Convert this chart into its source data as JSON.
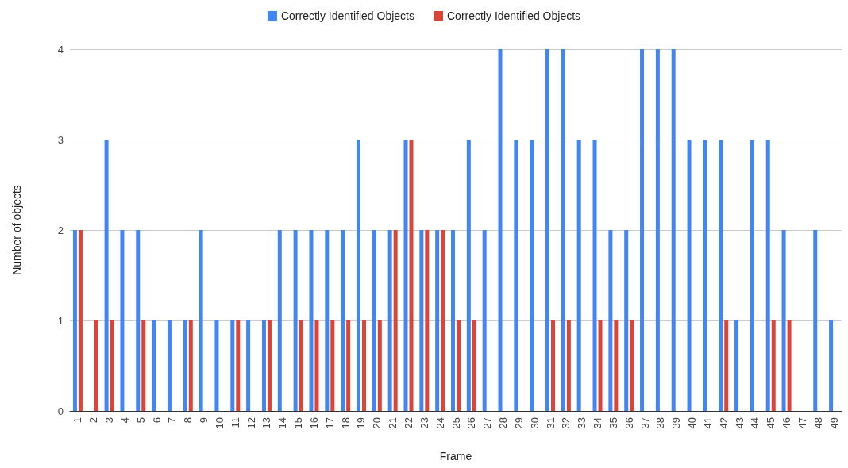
{
  "chart_data": {
    "type": "bar",
    "xlabel": "Frame",
    "ylabel": "Number of objects",
    "categories": [
      "1",
      "2",
      "3",
      "4",
      "5",
      "6",
      "7",
      "8",
      "9",
      "10",
      "11",
      "12",
      "13",
      "14",
      "15",
      "16",
      "17",
      "18",
      "19",
      "20",
      "21",
      "22",
      "23",
      "24",
      "25",
      "26",
      "27",
      "28",
      "29",
      "30",
      "31",
      "32",
      "33",
      "34",
      "35",
      "36",
      "37",
      "38",
      "39",
      "40",
      "41",
      "42",
      "43",
      "44",
      "45",
      "46",
      "47",
      "48",
      "49"
    ],
    "series": [
      {
        "name": "Correctly Identified Objects",
        "color": "#4285f4",
        "values": [
          2,
          0,
          3,
          2,
          2,
          1,
          1,
          1,
          2,
          1,
          1,
          1,
          1,
          2,
          2,
          2,
          2,
          2,
          3,
          2,
          2,
          3,
          2,
          2,
          2,
          3,
          2,
          4,
          3,
          3,
          4,
          4,
          3,
          3,
          2,
          2,
          4,
          4,
          4,
          3,
          3,
          3,
          1,
          3,
          3,
          2,
          0,
          2,
          1
        ]
      },
      {
        "name": "Correctly Identified Objects",
        "color": "#db4437",
        "values": [
          2,
          1,
          1,
          0,
          1,
          0,
          0,
          1,
          0,
          0,
          1,
          0,
          1,
          0,
          1,
          1,
          1,
          1,
          1,
          1,
          2,
          3,
          2,
          2,
          1,
          1,
          0,
          0,
          0,
          0,
          1,
          1,
          0,
          1,
          1,
          1,
          0,
          0,
          0,
          0,
          0,
          1,
          0,
          0,
          1,
          1,
          0,
          0,
          0
        ]
      }
    ],
    "ylim": [
      0,
      4
    ],
    "yticks": [
      0,
      1,
      2,
      3,
      4
    ],
    "grid": "y",
    "legend": "top"
  }
}
